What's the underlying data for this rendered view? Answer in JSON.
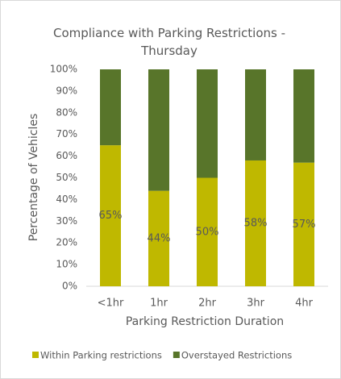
{
  "chart_data": {
    "type": "stacked_bar",
    "title": "Compliance with Parking Restrictions - Thursday",
    "x_label": "Parking Restriction Duration",
    "y_label": "Percentage of Vehicles",
    "categories": [
      "<1hr",
      "1hr",
      "2hr",
      "3hr",
      "4hr"
    ],
    "series": [
      {
        "name": "Within Parking restrictions",
        "color": "#bfb800",
        "values": [
          65,
          44,
          50,
          58,
          57
        ],
        "value_labels": [
          "65%",
          "44%",
          "50%",
          "58%",
          "57%"
        ]
      },
      {
        "name": "Overstayed Restrictions",
        "color": "#58752a",
        "values": [
          35,
          56,
          50,
          42,
          43
        ]
      }
    ],
    "ylim": [
      0,
      100
    ],
    "yticks": [
      {
        "value": 0,
        "label": "0%"
      },
      {
        "value": 10,
        "label": "10%"
      },
      {
        "value": 20,
        "label": "20%"
      },
      {
        "value": 30,
        "label": "30%"
      },
      {
        "value": 40,
        "label": "40%"
      },
      {
        "value": 50,
        "label": "50%"
      },
      {
        "value": 60,
        "label": "60%"
      },
      {
        "value": 70,
        "label": "70%"
      },
      {
        "value": 80,
        "label": "80%"
      },
      {
        "value": 90,
        "label": "90%"
      },
      {
        "value": 100,
        "label": "100%"
      }
    ],
    "grid": false,
    "legend": "bottom"
  }
}
